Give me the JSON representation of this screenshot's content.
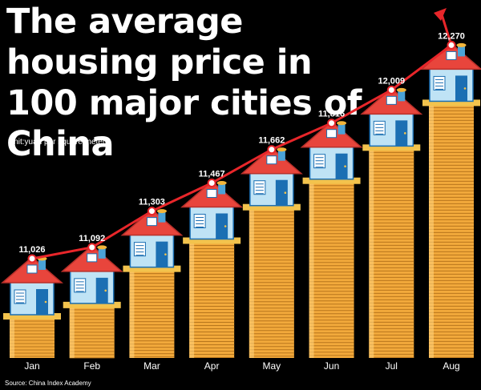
{
  "title": "The average housing price in 100 major cities of China",
  "unit_note": "Unit:yuan per square meter",
  "source": "Source: China Index Academy",
  "colors": {
    "background": "#000000",
    "line": "#e8262a",
    "coin": "#f2a93b",
    "roof": "#e8453c",
    "house_wall": "#bfe3f5",
    "house_door": "#1b6fb3",
    "text": "#ffffff"
  },
  "chart_data": {
    "type": "bar",
    "categories": [
      "Jan",
      "Feb",
      "Mar",
      "Apr",
      "May",
      "Jun",
      "Jul",
      "Aug"
    ],
    "values": [
      11026,
      11092,
      11303,
      11467,
      11662,
      11816,
      12009,
      12270
    ],
    "value_labels": [
      "11,026",
      "11,092",
      "11,303",
      "11,467",
      "11,662",
      "11,816",
      "12,009",
      "12,270"
    ],
    "title": "The average housing price in 100 major cities of China",
    "xlabel": "",
    "ylabel": "",
    "unit": "yuan per square meter",
    "ylim": [
      10900,
      12300
    ],
    "grid": false,
    "legend": "none",
    "overlay_line": true,
    "marks": "coin stacks topped by houses with rising line and arrow"
  }
}
